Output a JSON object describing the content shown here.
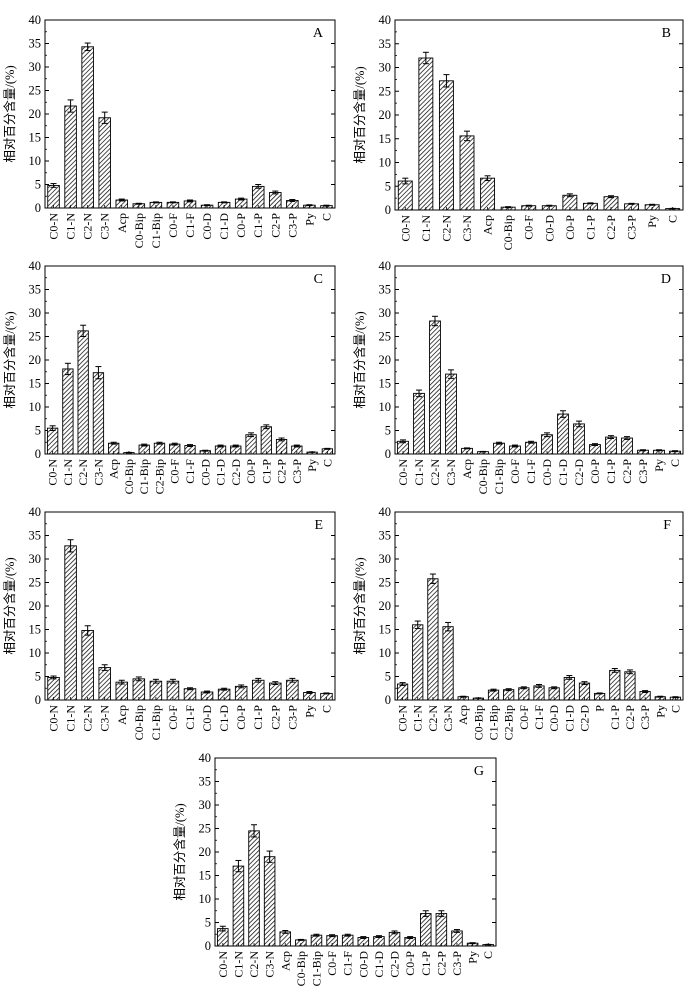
{
  "chart_data": [
    {
      "type": "bar",
      "panel_label": "A",
      "ylabel": "相对百分含量/(%)",
      "ylim": [
        0,
        40
      ],
      "yticks": [
        0,
        5,
        10,
        15,
        20,
        25,
        30,
        35,
        40
      ],
      "hatched": true,
      "categories": [
        "C0-N",
        "C1-N",
        "C2-N",
        "C3-N",
        "Acp",
        "C0-Bip",
        "C1-Bip",
        "C0-F",
        "C1-F",
        "C0-D",
        "C1-D",
        "C0-P",
        "C1-P",
        "C2-P",
        "C3-P",
        "Py",
        "C"
      ],
      "values": [
        4.8,
        21.7,
        34.3,
        19.2,
        1.7,
        0.9,
        1.2,
        1.2,
        1.5,
        0.6,
        1.2,
        1.9,
        4.6,
        3.3,
        1.6,
        0.6,
        0.5
      ],
      "errors": [
        0.4,
        1.3,
        0.8,
        1.2,
        0.2,
        0.1,
        0.1,
        0.1,
        0.2,
        0.1,
        0.1,
        0.2,
        0.4,
        0.3,
        0.2,
        0.1,
        0.1
      ]
    },
    {
      "type": "bar",
      "panel_label": "B",
      "ylabel": "相对百分含量/(%)",
      "ylim": [
        0,
        40
      ],
      "yticks": [
        0,
        5,
        10,
        15,
        20,
        25,
        30,
        35,
        40
      ],
      "hatched": true,
      "categories": [
        "C0-N",
        "C1-N",
        "C2-N",
        "C3-N",
        "Acp",
        "C0-Bip",
        "C0-F",
        "C0-D",
        "C0-P",
        "C1-P",
        "C2-P",
        "C3-P",
        "Py",
        "C"
      ],
      "values": [
        6.1,
        32.0,
        27.2,
        15.6,
        6.7,
        0.6,
        0.9,
        0.9,
        3.1,
        1.4,
        2.8,
        1.3,
        1.1,
        0.3
      ],
      "errors": [
        0.6,
        1.2,
        1.3,
        1.0,
        0.5,
        0.1,
        0.1,
        0.1,
        0.3,
        0.1,
        0.2,
        0.1,
        0.1,
        0.05
      ]
    },
    {
      "type": "bar",
      "panel_label": "C",
      "ylabel": "相对百分含量/(%)",
      "ylim": [
        0,
        40
      ],
      "yticks": [
        0,
        5,
        10,
        15,
        20,
        25,
        30,
        35,
        40
      ],
      "hatched": true,
      "categories": [
        "C0-N",
        "C1-N",
        "C2-N",
        "C3-N",
        "Acp",
        "C0-Bip",
        "C1-Bip",
        "C2-Bip",
        "C0-F",
        "C1-F",
        "C0-D",
        "C1-D",
        "C2-D",
        "C0-P",
        "C1-P",
        "C2-P",
        "C3-P",
        "Py",
        "C"
      ],
      "values": [
        5.5,
        18.1,
        26.2,
        17.3,
        2.3,
        0.3,
        1.9,
        2.3,
        2.1,
        1.8,
        0.7,
        1.7,
        1.7,
        4.1,
        5.8,
        3.1,
        1.7,
        0.4,
        1.1
      ],
      "errors": [
        0.5,
        1.2,
        1.2,
        1.3,
        0.2,
        0.05,
        0.2,
        0.2,
        0.2,
        0.2,
        0.1,
        0.2,
        0.2,
        0.4,
        0.4,
        0.3,
        0.2,
        0.05,
        0.1
      ]
    },
    {
      "type": "bar",
      "panel_label": "D",
      "ylabel": "相对百分含量/(%)",
      "ylim": [
        0,
        40
      ],
      "yticks": [
        0,
        5,
        10,
        15,
        20,
        25,
        30,
        35,
        40
      ],
      "hatched": true,
      "categories": [
        "C0-N",
        "C1-N",
        "C2-N",
        "C3-N",
        "Acp",
        "C0-Bip",
        "C1-Bip",
        "C0-F",
        "C1-F",
        "C0-D",
        "C1-D",
        "C2-D",
        "C0-P",
        "C1-P",
        "C2-P",
        "C3-P",
        "Py",
        "C"
      ],
      "values": [
        2.7,
        12.9,
        28.3,
        17.0,
        1.2,
        0.5,
        2.3,
        1.7,
        2.5,
        4.1,
        8.5,
        6.4,
        2.0,
        3.6,
        3.4,
        0.8,
        0.8,
        0.6
      ],
      "errors": [
        0.3,
        0.7,
        1.0,
        0.9,
        0.1,
        0.05,
        0.2,
        0.2,
        0.2,
        0.4,
        0.7,
        0.6,
        0.2,
        0.3,
        0.3,
        0.1,
        0.1,
        0.1
      ]
    },
    {
      "type": "bar",
      "panel_label": "E",
      "ylabel": "相对百分含量/(%)",
      "ylim": [
        0,
        40
      ],
      "yticks": [
        0,
        5,
        10,
        15,
        20,
        25,
        30,
        35,
        40
      ],
      "hatched": true,
      "categories": [
        "C0-N",
        "C1-N",
        "C2-N",
        "C3-N",
        "Acp",
        "C0-Bip",
        "C1-Bip",
        "C0-F",
        "C1-F",
        "C0-D",
        "C1-D",
        "C0-P",
        "C1-P",
        "C2-P",
        "C3-P",
        "Py",
        "C"
      ],
      "values": [
        4.8,
        32.8,
        14.8,
        6.9,
        3.8,
        4.5,
        4.0,
        4.0,
        2.4,
        1.7,
        2.3,
        2.9,
        4.2,
        3.6,
        4.2,
        1.6,
        1.4
      ],
      "errors": [
        0.3,
        1.3,
        1.0,
        0.6,
        0.4,
        0.4,
        0.4,
        0.4,
        0.2,
        0.2,
        0.2,
        0.3,
        0.4,
        0.3,
        0.4,
        0.2,
        0.1
      ]
    },
    {
      "type": "bar",
      "panel_label": "F",
      "ylabel": "相对百分含量/(%)",
      "ylim": [
        0,
        40
      ],
      "yticks": [
        0,
        5,
        10,
        15,
        20,
        25,
        30,
        35,
        40
      ],
      "hatched": true,
      "categories": [
        "C0-N",
        "C1-N",
        "C2-N",
        "C3-N",
        "Acp",
        "C0-Bip",
        "C1-Bip",
        "C2-Bip",
        "C0-F",
        "C1-F",
        "C0-D",
        "C1-D",
        "C2-D",
        "P",
        "C1-P",
        "C2-P",
        "C3-P",
        "Py",
        "C"
      ],
      "values": [
        3.4,
        16.0,
        25.8,
        15.6,
        0.7,
        0.4,
        2.1,
        2.2,
        2.6,
        3.0,
        2.6,
        4.8,
        3.6,
        1.4,
        6.3,
        6.0,
        1.8,
        0.7,
        0.6
      ],
      "errors": [
        0.3,
        0.8,
        1.0,
        0.9,
        0.1,
        0.05,
        0.2,
        0.2,
        0.2,
        0.3,
        0.2,
        0.4,
        0.3,
        0.1,
        0.4,
        0.4,
        0.2,
        0.1,
        0.1
      ]
    },
    {
      "type": "bar",
      "panel_label": "G",
      "ylabel": "相对百分含量/(%)",
      "ylim": [
        0,
        40
      ],
      "yticks": [
        0,
        5,
        10,
        15,
        20,
        25,
        30,
        35,
        40
      ],
      "hatched": true,
      "categories": [
        "C0-N",
        "C1-N",
        "C2-N",
        "C3-N",
        "Acp",
        "C0-Bip",
        "C1-Bip",
        "C0-F",
        "C1-F",
        "C0-D",
        "C1-D",
        "C2-D",
        "C0-P",
        "C1-P",
        "C2-P",
        "C3-P",
        "Py",
        "C"
      ],
      "values": [
        3.7,
        17.0,
        24.5,
        19.0,
        3.0,
        1.3,
        2.3,
        2.2,
        2.3,
        1.8,
        2.0,
        2.9,
        1.8,
        6.9,
        6.9,
        3.2,
        0.6,
        0.3
      ],
      "errors": [
        0.5,
        1.2,
        1.3,
        1.2,
        0.3,
        0.1,
        0.2,
        0.2,
        0.2,
        0.2,
        0.2,
        0.3,
        0.2,
        0.6,
        0.6,
        0.3,
        0.1,
        0.05
      ]
    }
  ]
}
